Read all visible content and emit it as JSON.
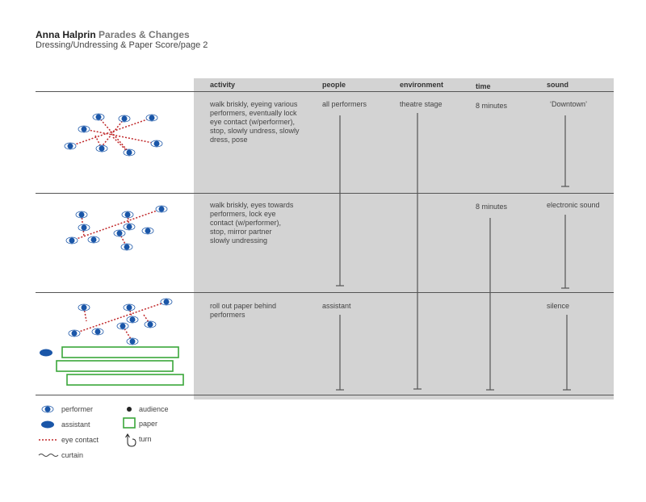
{
  "header": {
    "author": "Anna Halprin",
    "work": "Parades & Changes",
    "subtitle": "Dressing/Undressing & Paper Score/page 2"
  },
  "columns": [
    "activity",
    "people",
    "environment",
    "time",
    "sound"
  ],
  "rows": [
    {
      "activity": [
        "walk briskly, eyeing various",
        "performers, eventually lock",
        "eye contact (w/performer),",
        "stop, slowly undress, slowly",
        "dress, pose"
      ],
      "people": "all performers",
      "environment": "theatre stage",
      "time": "8 minutes",
      "sound": "‘Downtown’"
    },
    {
      "activity": [
        "walk briskly, eyes towards",
        "performers, lock eye",
        "contact (w/performer),",
        "stop, mirror partner",
        "slowly undressing"
      ],
      "people": "",
      "environment": "",
      "time": "8 minutes",
      "sound": "electronic sound"
    },
    {
      "activity": [
        "roll out paper behind",
        "performers"
      ],
      "people": "assistant",
      "environment": "",
      "time": "",
      "sound": "silence"
    }
  ],
  "legend": {
    "performer": "performer",
    "assistant": "assistant",
    "eye_contact": "eye contact",
    "curtain": "curtain",
    "audience": "audience",
    "paper": "paper",
    "turn": "turn"
  },
  "colors": {
    "performer": "#1a56a8",
    "eye_contact": "#c0282a",
    "paper": "#3aa63a",
    "panel": "#d3d3d3"
  }
}
